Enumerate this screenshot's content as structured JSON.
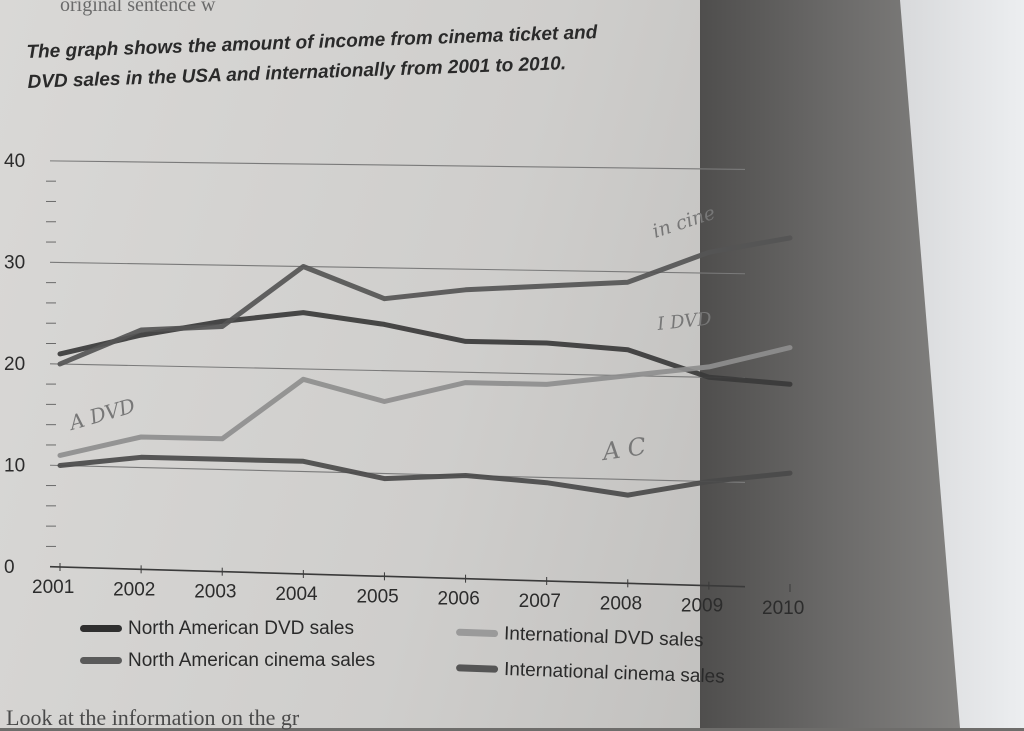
{
  "page": {
    "top_text": "original sentence w",
    "bottom_text": "Look at the information on the gr"
  },
  "chart_data": {
    "type": "line",
    "title_line1": "The graph shows the amount of income from cinema ticket and",
    "title_line2": "DVD sales in the USA and internationally from 2001 to 2010.",
    "x": [
      "2001",
      "2002",
      "2003",
      "2004",
      "2005",
      "2006",
      "2007",
      "2008",
      "2009",
      "2010"
    ],
    "yticks": [
      "0",
      "10",
      "20",
      "30",
      "40"
    ],
    "ylim": [
      0,
      40
    ],
    "grid": true,
    "series": [
      {
        "name": "North American DVD sales",
        "color": "#3a3a3a",
        "values": [
          21,
          23,
          24.5,
          25.5,
          24.5,
          23,
          23,
          22.5,
          20,
          19.5
        ]
      },
      {
        "name": "North American cinema sales",
        "color": "#4a4a4a",
        "values": [
          10,
          11,
          11,
          11,
          9.5,
          10,
          9.5,
          8.5,
          10,
          11
        ]
      },
      {
        "name": "International DVD sales",
        "color": "#8e8e8e",
        "values": [
          11,
          13,
          13,
          19,
          17,
          19,
          19,
          20,
          21,
          23
        ]
      },
      {
        "name": "International cinema sales",
        "color": "#555555",
        "values": [
          20,
          23.5,
          24,
          30,
          27,
          28,
          28.5,
          29,
          32,
          33.5
        ]
      }
    ],
    "legend": "bottom"
  },
  "annotations": [
    {
      "text": "in cine"
    },
    {
      "text": "I DVD"
    },
    {
      "text": "A DVD"
    },
    {
      "text": "A C"
    }
  ]
}
